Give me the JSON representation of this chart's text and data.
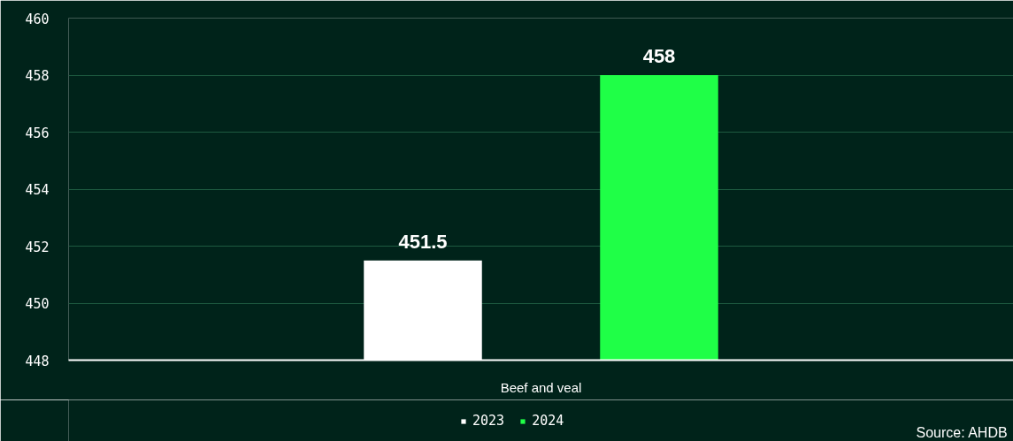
{
  "chart_data": {
    "type": "bar",
    "categories": [
      "Beef and veal"
    ],
    "series": [
      {
        "name": "2023",
        "color": "#ffffff",
        "values": [
          451.5
        ]
      },
      {
        "name": "2024",
        "color": "#1fff47",
        "values": [
          458
        ]
      }
    ],
    "ylim": [
      448,
      460
    ],
    "yticks": [
      448,
      450,
      452,
      454,
      456,
      458,
      460
    ],
    "grid": "y",
    "legend": "bottom",
    "data_labels": true,
    "annotations": [
      "Source: AHDB"
    ]
  }
}
